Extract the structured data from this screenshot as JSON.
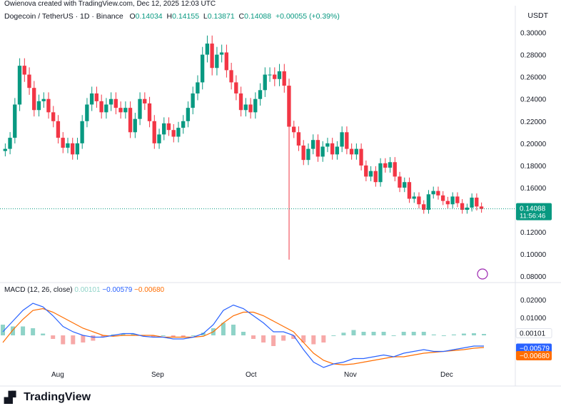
{
  "caption": "Owienova created with TradingView.com, Dec 12, 2025 12:03 UTC",
  "symbol": "Dogecoin / TetherUS · 1D · Binance",
  "ohlc": {
    "o_label": "O",
    "o": "0.14034",
    "h_label": "H",
    "h": "0.14155",
    "l_label": "L",
    "l": "0.13871",
    "c_label": "C",
    "c": "0.14088",
    "change": "+0.00055 (+0.39%)"
  },
  "currency": "USDT",
  "last_price": {
    "value": "0.14088",
    "countdown": "11:56:46"
  },
  "macd": {
    "title": "MACD (12, 26, close)",
    "hist": "0.00101",
    "macd": "−0.00579",
    "signal": "−0.00680"
  },
  "brand": "TradingView",
  "colors": {
    "up": "#089981",
    "down": "#f23645",
    "macd": "#2962ff",
    "signal": "#ff6d00",
    "hist_up": "#26a69a",
    "hist_down": "#ef5350"
  },
  "chart_data": [
    {
      "type": "candlestick",
      "title": "Dogecoin / TetherUS · 1D · Binance",
      "x_ticks": [
        "Aug",
        "Sep",
        "Oct",
        "Nov",
        "Dec"
      ],
      "y_ticks": [
        "0.30000",
        "0.28000",
        "0.26000",
        "0.24000",
        "0.22000",
        "0.20000",
        "0.18000",
        "0.16000",
        "0.12000",
        "0.10000",
        "0.08000"
      ],
      "ylim": [
        0.075,
        0.31
      ],
      "closes": [
        0.195,
        0.205,
        0.235,
        0.27,
        0.262,
        0.25,
        0.23,
        0.238,
        0.24,
        0.228,
        0.22,
        0.205,
        0.196,
        0.2,
        0.19,
        0.2,
        0.22,
        0.235,
        0.245,
        0.238,
        0.228,
        0.235,
        0.24,
        0.232,
        0.228,
        0.232,
        0.21,
        0.222,
        0.24,
        0.236,
        0.22,
        0.2,
        0.208,
        0.218,
        0.212,
        0.206,
        0.214,
        0.22,
        0.232,
        0.245,
        0.255,
        0.28,
        0.29,
        0.268,
        0.28,
        0.282,
        0.266,
        0.255,
        0.245,
        0.23,
        0.235,
        0.228,
        0.24,
        0.248,
        0.262,
        0.262,
        0.258,
        0.265,
        0.252,
        0.215,
        0.21,
        0.198,
        0.185,
        0.195,
        0.203,
        0.188,
        0.197,
        0.2,
        0.19,
        0.197,
        0.21,
        0.195,
        0.19,
        0.195,
        0.18,
        0.17,
        0.175,
        0.165,
        0.182,
        0.178,
        0.183,
        0.17,
        0.16,
        0.165,
        0.15,
        0.152,
        0.145,
        0.14,
        0.154,
        0.157,
        0.153,
        0.148,
        0.145,
        0.152,
        0.146,
        0.14,
        0.142,
        0.151,
        0.143,
        0.1409
      ],
      "last": 0.14088,
      "notable_wick_low": 0.095
    },
    {
      "type": "line",
      "title": "MACD (12, 26, close)",
      "y_ticks": [
        "0.02000",
        "0.01000"
      ],
      "ylim": [
        -0.028,
        0.026
      ],
      "series": [
        {
          "name": "MACD",
          "values": [
            0.002,
            0.008,
            0.014,
            0.018,
            0.016,
            0.011,
            0.005,
            0.002,
            0.0,
            -0.001,
            -0.001,
            0.0,
            0.001,
            0.001,
            -0.0005,
            -0.001,
            -0.001,
            -0.002,
            -0.002,
            -0.001,
            0.001,
            0.006,
            0.014,
            0.017,
            0.015,
            0.011,
            0.007,
            0.002,
            0.002,
            0.0,
            -0.008,
            -0.015,
            -0.018,
            -0.016,
            -0.015,
            -0.013,
            -0.013,
            -0.012,
            -0.011,
            -0.012,
            -0.01,
            -0.009,
            -0.008,
            -0.009,
            -0.009,
            -0.008,
            -0.007,
            -0.006,
            -0.006
          ]
        },
        {
          "name": "Signal",
          "values": [
            -0.004,
            0.003,
            0.009,
            0.014,
            0.015,
            0.013,
            0.01,
            0.007,
            0.004,
            0.002,
            0.0,
            -0.0005,
            0.0,
            0.0,
            0.0,
            0.0,
            -0.001,
            -0.001,
            -0.001,
            -0.001,
            -0.0005,
            0.002,
            0.007,
            0.011,
            0.013,
            0.013,
            0.011,
            0.008,
            0.005,
            0.002,
            -0.004,
            -0.01,
            -0.014,
            -0.016,
            -0.0165,
            -0.016,
            -0.015,
            -0.014,
            -0.013,
            -0.012,
            -0.012,
            -0.011,
            -0.01,
            -0.0095,
            -0.009,
            -0.0085,
            -0.008,
            -0.0072,
            -0.0068
          ]
        }
      ]
    }
  ]
}
